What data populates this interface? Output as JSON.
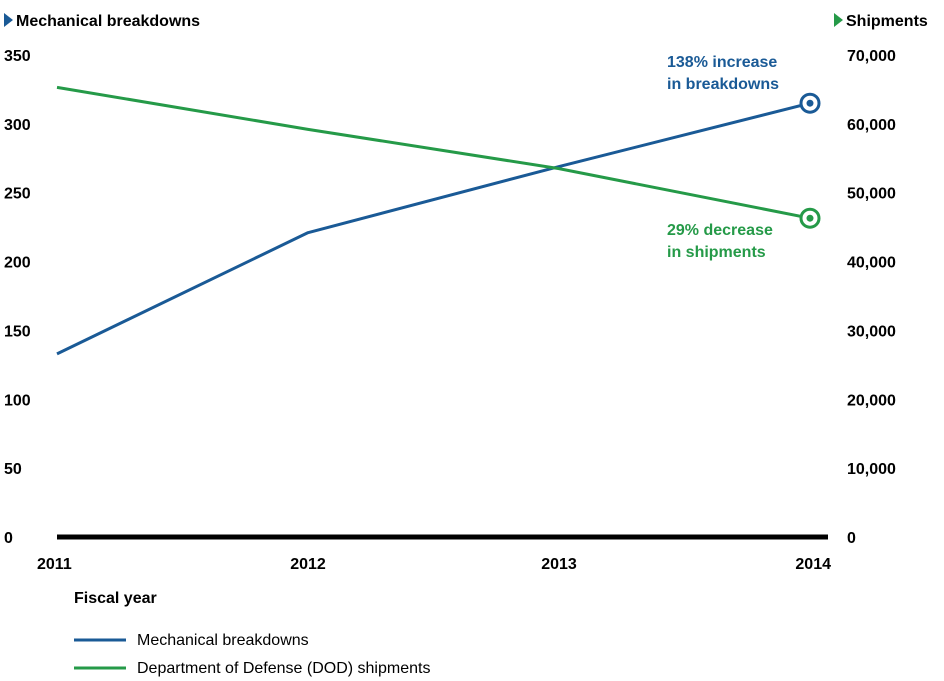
{
  "chart_data": {
    "type": "line",
    "x": [
      "2011",
      "2012",
      "2013",
      "2014"
    ],
    "xlabel": "Fiscal year",
    "y_left": {
      "label": "Mechanical breakdowns",
      "range": [
        0,
        350
      ],
      "ticks": [
        "0",
        "50",
        "100",
        "150",
        "200",
        "250",
        "300",
        "350"
      ],
      "tick_values": [
        0,
        50,
        100,
        150,
        200,
        250,
        300,
        350
      ]
    },
    "y_right": {
      "label": "Shipments",
      "range": [
        0,
        70000
      ],
      "ticks": [
        "0",
        "10,000",
        "20,000",
        "30,000",
        "40,000",
        "50,000",
        "60,000",
        "70,000"
      ],
      "tick_values": [
        0,
        10000,
        20000,
        30000,
        40000,
        50000,
        60000,
        70000
      ]
    },
    "series": [
      {
        "name": "Mechanical breakdowns",
        "axis": "left",
        "color": "#1a5a96",
        "values": [
          133,
          221,
          269,
          315
        ]
      },
      {
        "name": "Department of Defense (DOD) shipments",
        "axis": "right",
        "color": "#259a48",
        "values": [
          65300,
          59200,
          53500,
          46300
        ]
      }
    ],
    "annotations": [
      {
        "series": 0,
        "lines": [
          "138% increase",
          "in breakdowns"
        ],
        "color": "#1a5a96"
      },
      {
        "series": 1,
        "lines": [
          "29% decrease",
          "in shipments"
        ],
        "color": "#259a48"
      }
    ],
    "grid": false,
    "legend_position": "bottom-left"
  }
}
